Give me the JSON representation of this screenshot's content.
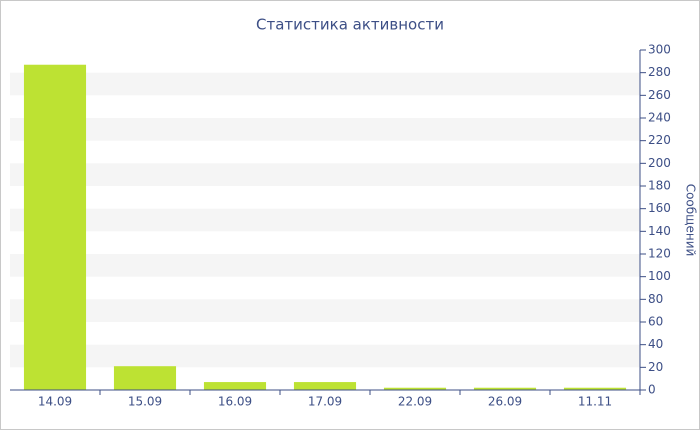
{
  "chart_data": {
    "type": "bar",
    "title": "Статистика активности",
    "y_label": "Сообщений",
    "categories": [
      "14.09",
      "15.09",
      "16.09",
      "17.09",
      "22.09",
      "26.09",
      "11.11"
    ],
    "values": [
      287,
      21,
      7,
      7,
      2,
      2,
      2
    ],
    "color": "#bde233",
    "ylim": [
      0,
      300
    ],
    "yticks": [
      0,
      20,
      40,
      60,
      80,
      100,
      120,
      140,
      160,
      180,
      200,
      220,
      240,
      260,
      280,
      300
    ],
    "grid_bands": true,
    "y_axis_side": "right"
  }
}
